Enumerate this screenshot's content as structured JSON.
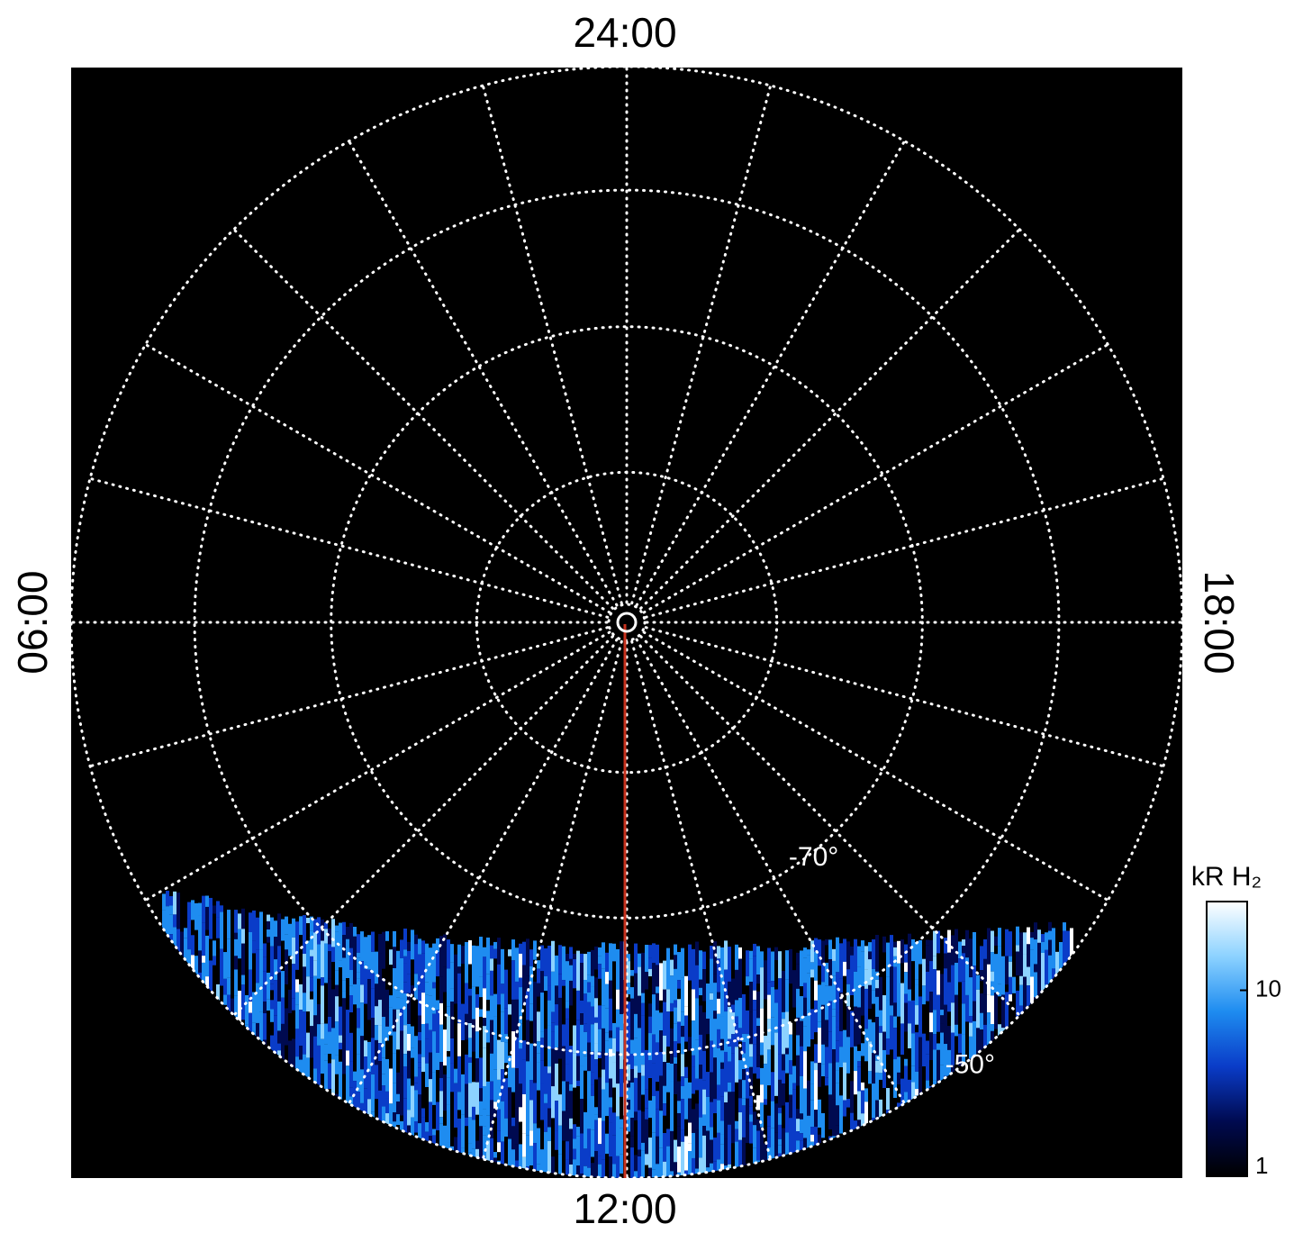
{
  "chart_data": {
    "type": "polar-image",
    "time_labels": {
      "top": "24:00",
      "bottom": "12:00",
      "left": "06:00",
      "right": "18:00"
    },
    "latitude_rings": [
      -80,
      {
        "value": -70,
        "label": "-70°"
      },
      -60,
      {
        "value": -50,
        "label": "-50°"
      }
    ],
    "grid": true,
    "colorbar": {
      "label": "kR H₂",
      "scale": "log",
      "lim": [
        1,
        30
      ],
      "ticks": [
        1,
        10
      ],
      "colors": [
        "#000000",
        "#000a50",
        "#0a3cc8",
        "#1e8cf0",
        "#8cd2ff",
        "#ffffff"
      ]
    }
  }
}
